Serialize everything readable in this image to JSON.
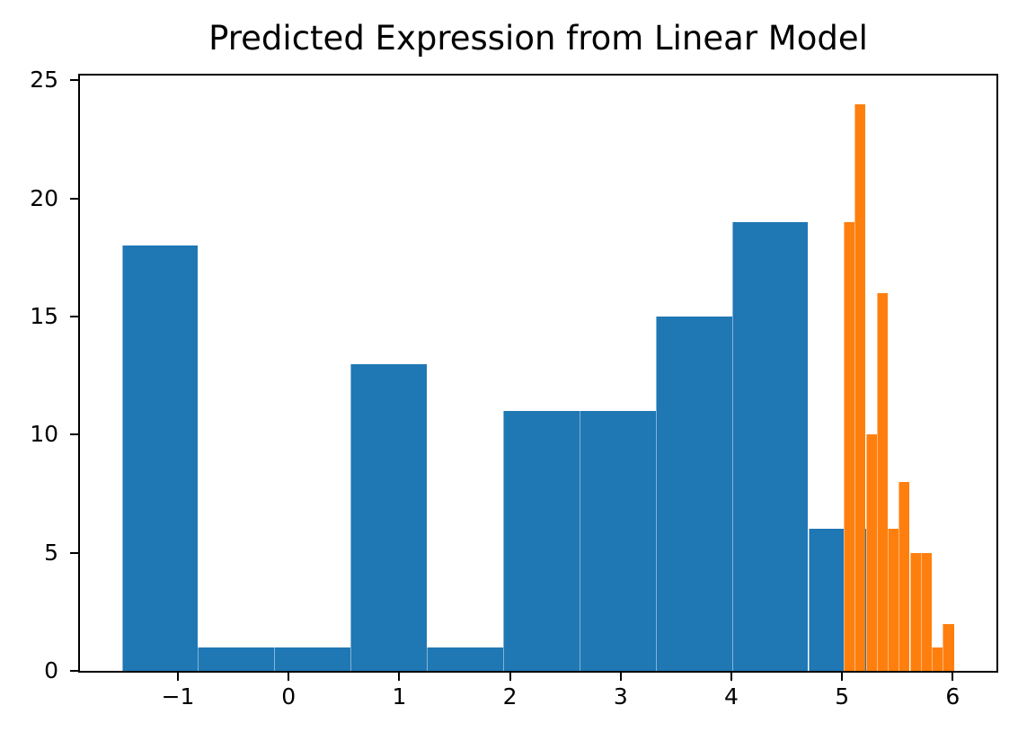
{
  "chart_data": {
    "type": "bar",
    "subtype": "histogram",
    "title": "Predicted Expression from Linear Model",
    "xlabel": "",
    "ylabel": "",
    "xlim": [
      -1.885,
      6.395
    ],
    "ylim": [
      0,
      25.2
    ],
    "grid": false,
    "legend": null,
    "background_color": "#ffffff",
    "axis_color": "#000000",
    "xticks": [
      {
        "value": -1,
        "label": "−1"
      },
      {
        "value": 0,
        "label": "0"
      },
      {
        "value": 1,
        "label": "1"
      },
      {
        "value": 2,
        "label": "2"
      },
      {
        "value": 3,
        "label": "3"
      },
      {
        "value": 4,
        "label": "4"
      },
      {
        "value": 5,
        "label": "5"
      },
      {
        "value": 6,
        "label": "6"
      }
    ],
    "yticks": [
      {
        "value": 0,
        "label": "0"
      },
      {
        "value": 5,
        "label": "5"
      },
      {
        "value": 10,
        "label": "10"
      },
      {
        "value": 15,
        "label": "15"
      },
      {
        "value": 20,
        "label": "20"
      },
      {
        "value": 25,
        "label": "25"
      }
    ],
    "series": [
      {
        "name": "blue-wide-bin-histogram",
        "color": "#1f77b4",
        "bin_edges": [
          -1.507,
          -0.818,
          -0.129,
          0.56,
          1.249,
          1.938,
          2.627,
          3.316,
          4.005,
          4.694,
          5.383
        ],
        "counts": [
          18,
          1,
          1,
          13,
          1,
          11,
          11,
          15,
          19,
          6
        ]
      },
      {
        "name": "orange-narrow-bin-histogram",
        "color": "#ff7f0e",
        "bin_edges": [
          5.015,
          5.114,
          5.214,
          5.314,
          5.413,
          5.513,
          5.612,
          5.712,
          5.811,
          5.911,
          6.01
        ],
        "counts": [
          19,
          24,
          10,
          16,
          6,
          8,
          5,
          5,
          1,
          2
        ]
      }
    ]
  }
}
